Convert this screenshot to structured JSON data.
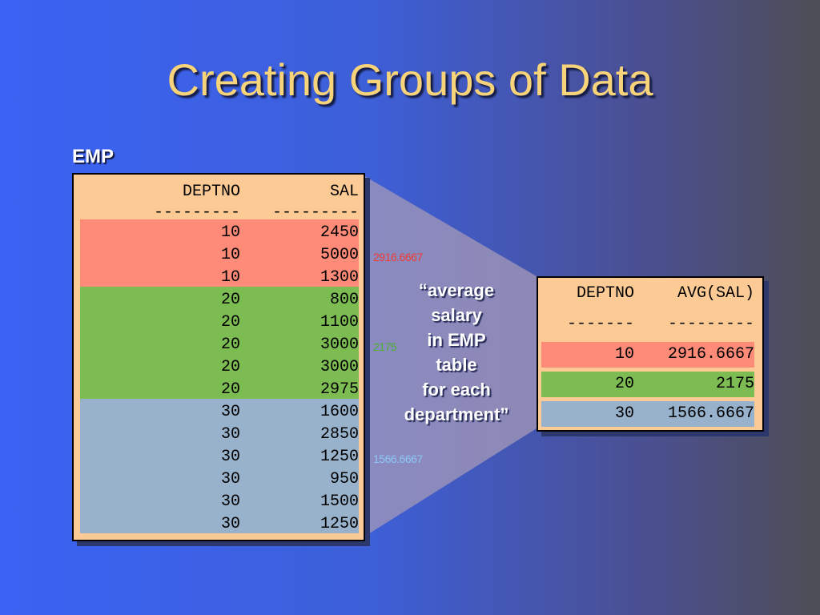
{
  "title": "Creating Groups of Data",
  "emp_label": "EMP",
  "emp_table": {
    "headers": [
      "DEPTNO",
      "SAL"
    ],
    "dashes": [
      "---------",
      "---------"
    ],
    "rows": [
      {
        "deptno": "10",
        "sal": "2450"
      },
      {
        "deptno": "10",
        "sal": "5000"
      },
      {
        "deptno": "10",
        "sal": "1300"
      },
      {
        "deptno": "20",
        "sal": "800"
      },
      {
        "deptno": "20",
        "sal": "1100"
      },
      {
        "deptno": "20",
        "sal": "3000"
      },
      {
        "deptno": "20",
        "sal": "3000"
      },
      {
        "deptno": "20",
        "sal": "2975"
      },
      {
        "deptno": "30",
        "sal": "1600"
      },
      {
        "deptno": "30",
        "sal": "2850"
      },
      {
        "deptno": "30",
        "sal": "1250"
      },
      {
        "deptno": "30",
        "sal": "950"
      },
      {
        "deptno": "30",
        "sal": "1500"
      },
      {
        "deptno": "30",
        "sal": "1250"
      }
    ]
  },
  "side_values": [
    "2916.6667",
    "2175",
    "1566.6667"
  ],
  "caption_lines": [
    "“average",
    "salary",
    "in EMP",
    "table",
    "for each",
    "department”"
  ],
  "avg_table": {
    "headers": [
      "DEPTNO",
      "AVG(SAL)"
    ],
    "dashes": [
      "-------",
      "---------"
    ],
    "rows": [
      {
        "deptno": "10",
        "avg": "2916.6667"
      },
      {
        "deptno": "20",
        "avg": "2175"
      },
      {
        "deptno": "30",
        "avg": "1566.6667"
      }
    ]
  },
  "colors": {
    "group_10": "#fd8b78",
    "group_20": "#7cbc52",
    "group_30": "#98b2cc",
    "title": "#f7d37a"
  }
}
